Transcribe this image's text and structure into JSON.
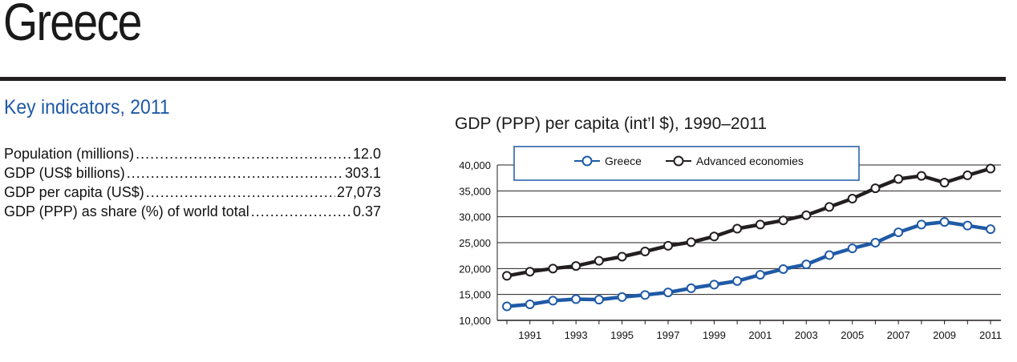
{
  "page": {
    "country": "Greece",
    "section_title": "Key indicators, 2011",
    "chart_title": "GDP (PPP) per capita (int’l $), 1990–2011"
  },
  "indicators": [
    {
      "label": "Population (millions)",
      "value": "12.0"
    },
    {
      "label": "GDP (US$ billions)",
      "value": "303.1"
    },
    {
      "label": "GDP per capita (US$)",
      "value": "27,073"
    },
    {
      "label": "GDP (PPP) as share (%) of world total",
      "value": "0.37"
    }
  ],
  "colors": {
    "greece": "#1f5aa6",
    "advanced": "#231f20",
    "title_blue": "#1f5aa6"
  },
  "chart_data": {
    "type": "line",
    "title": "GDP (PPP) per capita (int’l $), 1990–2011",
    "x": [
      1990,
      1991,
      1992,
      1993,
      1994,
      1995,
      1996,
      1997,
      1998,
      1999,
      2000,
      2001,
      2002,
      2003,
      2004,
      2005,
      2006,
      2007,
      2008,
      2009,
      2010,
      2011
    ],
    "xticks": [
      "1991",
      "1993",
      "1995",
      "1997",
      "1999",
      "2001",
      "2003",
      "2005",
      "2007",
      "2009",
      "2011"
    ],
    "yticks": [
      "10,000",
      "15,000",
      "20,000",
      "25,000",
      "30,000",
      "35,000",
      "40,000"
    ],
    "ylim": [
      10000,
      40000
    ],
    "grid": true,
    "legend_position": "top",
    "series": [
      {
        "name": "Greece",
        "values": [
          12700,
          13100,
          13800,
          14100,
          14000,
          14500,
          14900,
          15400,
          16200,
          16900,
          17600,
          18800,
          19900,
          20800,
          22600,
          23900,
          25000,
          27000,
          28500,
          29000,
          28300,
          27600
        ]
      },
      {
        "name": "Advanced economies",
        "values": [
          18600,
          19400,
          20000,
          20500,
          21500,
          22300,
          23300,
          24400,
          25100,
          26200,
          27700,
          28500,
          29300,
          30300,
          31900,
          33500,
          35500,
          37300,
          37900,
          36600,
          38000,
          39300
        ]
      }
    ]
  }
}
